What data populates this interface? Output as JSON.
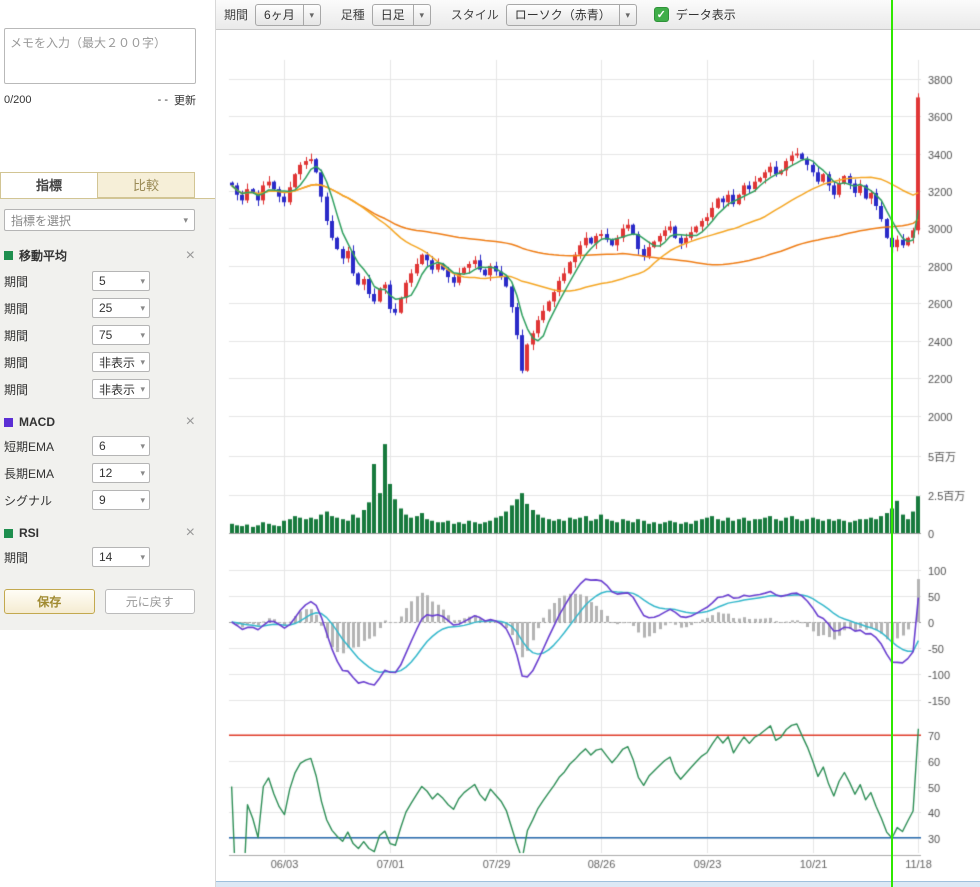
{
  "icons": {
    "check_icon": "✓",
    "caret_icon": "▾",
    "close_icon": "×"
  },
  "sidebar": {
    "memo": {
      "placeholder": "メモを入力（最大２００字）",
      "counter": "0/200",
      "last_update": "- -",
      "update_label": "更新"
    },
    "tabs": [
      "指標",
      "比較"
    ],
    "active_tab": "指標",
    "indicator_select_placeholder": "指標を選択",
    "panels": [
      {
        "title": "移動平均",
        "color": "#1e8f4e",
        "rows": [
          {
            "label": "期間",
            "value": "5"
          },
          {
            "label": "期間",
            "value": "25"
          },
          {
            "label": "期間",
            "value": "75"
          },
          {
            "label": "期間",
            "value": "非表示"
          },
          {
            "label": "期間",
            "value": "非表示"
          }
        ]
      },
      {
        "title": "MACD",
        "color": "#5b2fd4",
        "rows": [
          {
            "label": "短期EMA",
            "value": "6"
          },
          {
            "label": "長期EMA",
            "value": "12"
          },
          {
            "label": "シグナル",
            "value": "9"
          }
        ]
      },
      {
        "title": "RSI",
        "color": "#1e8f4e",
        "rows": [
          {
            "label": "期間",
            "value": "14"
          }
        ]
      }
    ],
    "save_label": "保存",
    "reset_label": "元に戻す"
  },
  "toolbar": {
    "period_label": "期間",
    "period_value": "6ヶ月",
    "bar_type_label": "足種",
    "bar_type_value": "日足",
    "style_label": "スタイル",
    "style_value": "ローソク（赤青）",
    "data_display_label": "データ表示",
    "data_display_checked": true
  },
  "chart_data": {
    "type": "candlestick",
    "x_labels": [
      {
        "i": 10,
        "t": "06/03"
      },
      {
        "i": 30,
        "t": "07/01"
      },
      {
        "i": 50,
        "t": "07/29"
      },
      {
        "i": 70,
        "t": "08/26"
      },
      {
        "i": 90,
        "t": "09/23"
      },
      {
        "i": 110,
        "t": "10/21"
      },
      {
        "i": 130,
        "t": "11/18"
      }
    ],
    "closes": [
      3230,
      3180,
      3150,
      3210,
      3190,
      3150,
      3230,
      3250,
      3210,
      3170,
      3140,
      3220,
      3290,
      3340,
      3360,
      3370,
      3300,
      3170,
      3040,
      2950,
      2890,
      2840,
      2880,
      2760,
      2700,
      2730,
      2650,
      2610,
      2680,
      2700,
      2570,
      2550,
      2630,
      2710,
      2760,
      2810,
      2860,
      2830,
      2780,
      2810,
      2780,
      2740,
      2710,
      2760,
      2790,
      2810,
      2830,
      2780,
      2750,
      2800,
      2770,
      2740,
      2690,
      2580,
      2430,
      2240,
      2380,
      2440,
      2510,
      2560,
      2610,
      2660,
      2720,
      2760,
      2820,
      2860,
      2910,
      2950,
      2920,
      2960,
      2970,
      2940,
      2910,
      2950,
      3000,
      3020,
      2970,
      2890,
      2850,
      2900,
      2930,
      2960,
      2990,
      3010,
      2950,
      2920,
      2950,
      2980,
      3010,
      3040,
      3060,
      3110,
      3160,
      3140,
      3180,
      3130,
      3180,
      3230,
      3210,
      3250,
      3270,
      3300,
      3330,
      3290,
      3310,
      3360,
      3390,
      3400,
      3370,
      3340,
      3300,
      3250,
      3290,
      3230,
      3180,
      3240,
      3280,
      3240,
      3190,
      3230,
      3160,
      3190,
      3120,
      3050,
      2950,
      2900,
      2940,
      2910,
      2950,
      2990,
      3700
    ],
    "volumes": [
      0.6,
      0.5,
      0.45,
      0.55,
      0.4,
      0.5,
      0.7,
      0.6,
      0.5,
      0.45,
      0.8,
      0.9,
      1.1,
      1.0,
      0.9,
      1.0,
      0.9,
      1.2,
      1.4,
      1.1,
      1.0,
      0.9,
      0.8,
      1.2,
      1.0,
      1.5,
      2.0,
      4.5,
      2.6,
      5.8,
      3.2,
      2.2,
      1.6,
      1.2,
      1.0,
      1.1,
      1.3,
      0.9,
      0.8,
      0.7,
      0.7,
      0.8,
      0.6,
      0.7,
      0.6,
      0.8,
      0.7,
      0.6,
      0.7,
      0.8,
      1.0,
      1.1,
      1.4,
      1.8,
      2.2,
      2.6,
      1.9,
      1.5,
      1.2,
      1.0,
      0.9,
      0.8,
      0.9,
      0.8,
      1.0,
      0.9,
      1.0,
      1.1,
      0.8,
      0.9,
      1.2,
      0.9,
      0.8,
      0.7,
      0.9,
      0.8,
      0.7,
      0.9,
      0.8,
      0.6,
      0.7,
      0.6,
      0.7,
      0.8,
      0.7,
      0.6,
      0.7,
      0.6,
      0.8,
      0.9,
      1.0,
      1.1,
      0.9,
      0.8,
      1.0,
      0.8,
      0.9,
      1.0,
      0.8,
      0.9,
      0.9,
      1.0,
      1.1,
      0.9,
      0.8,
      1.0,
      1.1,
      0.9,
      0.8,
      0.9,
      1.0,
      0.9,
      0.8,
      0.9,
      0.8,
      0.9,
      0.8,
      0.7,
      0.8,
      0.9,
      0.9,
      1.0,
      0.9,
      1.1,
      1.3,
      1.6,
      2.1,
      1.2,
      0.9,
      1.4,
      2.4
    ],
    "price_axis": {
      "min": 1950,
      "max": 3900,
      "ticks": [
        3800,
        3600,
        3400,
        3200,
        3000,
        2800,
        2600,
        2400,
        2200,
        2000
      ]
    },
    "volume_axis": {
      "min": 0,
      "max": 6.2,
      "ticks": [
        {
          "v": 5,
          "t": "5百万"
        },
        {
          "v": 2.5,
          "t": "2.5百万"
        },
        {
          "v": 0,
          "t": "0"
        }
      ]
    },
    "macd_axis": {
      "min": -160,
      "max": 110,
      "ticks": [
        100,
        50,
        0,
        -50,
        -100,
        -150
      ]
    },
    "rsi_axis": {
      "min": 24,
      "max": 76,
      "ticks": [
        70,
        60,
        50,
        40,
        30
      ],
      "upper": 70,
      "lower": 30
    },
    "indicators": {
      "sma_periods": [
        5,
        25,
        75
      ],
      "macd": {
        "fast": 6,
        "slow": 12,
        "signal": 9
      },
      "rsi_period": 14
    },
    "colors": {
      "up": "#e03535",
      "down": "#2a2ac8",
      "sma5": "#2fa05f",
      "sma25": "#f5a623",
      "sma75": "#ef7d15",
      "volume": "#177a3d",
      "macd": "#6a3fd0",
      "signal": "#35b8cc",
      "hist": "#b4b4b4",
      "rsi": "#2f8f57",
      "rsi_upper": "#e03c28",
      "rsi_lower": "#2a6cb0",
      "crosshair": "#2fe800",
      "grid": "#e6e6e6"
    },
    "crosshair_index": 125
  }
}
